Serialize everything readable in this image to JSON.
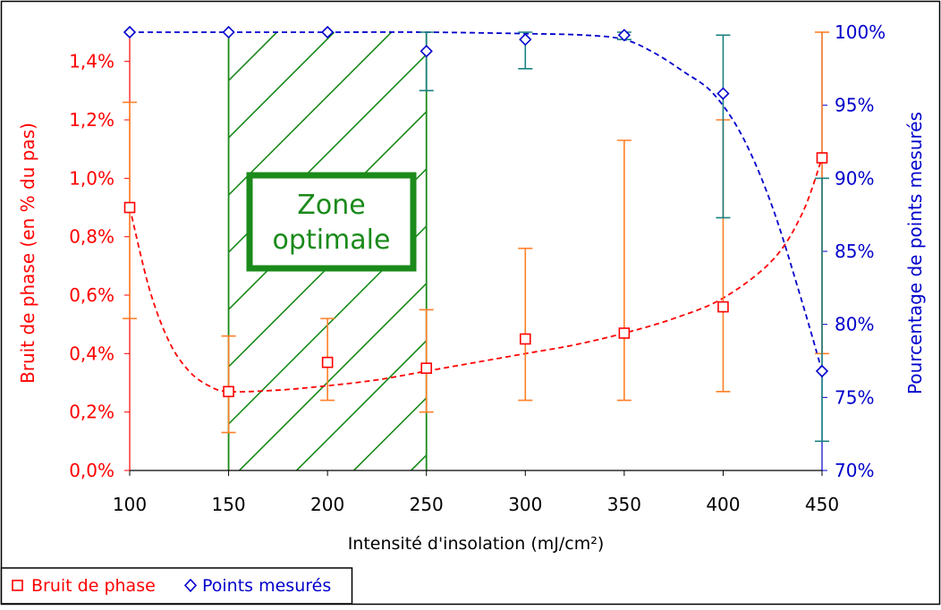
{
  "chart_data": {
    "type": "scatter",
    "xlabel": "Intensité d'insolation (mJ/cm²)",
    "ylabel": "Bruit de phase (en % du pas)",
    "y2label": "Pourcentage de points mesurés",
    "xlim": [
      100,
      450
    ],
    "ylim": [
      0.0,
      1.5
    ],
    "y2lim": [
      70,
      100
    ],
    "x_ticks": [
      "100",
      "150",
      "200",
      "250",
      "300",
      "350",
      "400",
      "450"
    ],
    "x_tick_values": [
      100,
      150,
      200,
      250,
      300,
      350,
      400,
      450
    ],
    "y_ticks": [
      "0,0%",
      "0,2%",
      "0,4%",
      "0,6%",
      "0,8%",
      "1,0%",
      "1,2%",
      "1,4%"
    ],
    "y_tick_values": [
      0.0,
      0.2,
      0.4,
      0.6,
      0.8,
      1.0,
      1.2,
      1.4
    ],
    "y2_ticks": [
      "70%",
      "75%",
      "80%",
      "85%",
      "90%",
      "95%",
      "100%"
    ],
    "y2_tick_values": [
      70,
      75,
      80,
      85,
      90,
      95,
      100
    ],
    "grid": false,
    "legend_position": "bottom-left",
    "series": [
      {
        "name": "Bruit de phase",
        "axis": "left",
        "color": "#ff0000",
        "errorbar_color": "#ff7f27",
        "marker": "square",
        "x": [
          100,
          150,
          200,
          250,
          300,
          350,
          400,
          450
        ],
        "y": [
          0.9,
          0.27,
          0.37,
          0.35,
          0.45,
          0.47,
          0.56,
          1.07
        ],
        "y_low": [
          0.52,
          0.13,
          0.24,
          0.2,
          0.24,
          0.24,
          0.27,
          0.4
        ],
        "y_high": [
          1.26,
          0.46,
          0.52,
          0.55,
          0.76,
          1.13,
          1.2,
          1.5
        ],
        "trend": [
          [
            100,
            0.9
          ],
          [
            110,
            0.62
          ],
          [
            120,
            0.44
          ],
          [
            130,
            0.34
          ],
          [
            140,
            0.29
          ],
          [
            150,
            0.27
          ],
          [
            175,
            0.275
          ],
          [
            200,
            0.29
          ],
          [
            225,
            0.31
          ],
          [
            250,
            0.34
          ],
          [
            275,
            0.37
          ],
          [
            300,
            0.4
          ],
          [
            325,
            0.43
          ],
          [
            350,
            0.47
          ],
          [
            375,
            0.52
          ],
          [
            400,
            0.59
          ],
          [
            425,
            0.72
          ],
          [
            440,
            0.88
          ],
          [
            450,
            1.07
          ]
        ]
      },
      {
        "name": "Points mesurés",
        "axis": "right",
        "color": "#0000cc",
        "errorbar_color": "#1a8080",
        "marker": "diamond",
        "x": [
          100,
          150,
          200,
          250,
          300,
          350,
          400,
          450
        ],
        "y": [
          100.0,
          100.0,
          100.0,
          98.7,
          99.5,
          99.8,
          95.8,
          76.8
        ],
        "y_low": [
          100.0,
          100.0,
          100.0,
          96.0,
          97.5,
          99.5,
          87.3,
          72.0
        ],
        "y_high": [
          100.0,
          100.0,
          100.0,
          100.0,
          100.0,
          100.0,
          99.8,
          90.0
        ],
        "trend": [
          [
            100,
            100.0
          ],
          [
            150,
            100.0
          ],
          [
            200,
            100.0
          ],
          [
            250,
            100.0
          ],
          [
            300,
            99.9
          ],
          [
            330,
            99.8
          ],
          [
            350,
            99.5
          ],
          [
            365,
            98.6
          ],
          [
            380,
            97.3
          ],
          [
            395,
            95.8
          ],
          [
            410,
            92.8
          ],
          [
            425,
            88.0
          ],
          [
            440,
            81.5
          ],
          [
            450,
            76.8
          ]
        ]
      }
    ],
    "annotations": [
      {
        "type": "hatched_band",
        "x_start": 150,
        "x_end": 250,
        "color": "#1a8a1a"
      },
      {
        "type": "box_label",
        "lines": [
          "Zone",
          "optimale"
        ],
        "color": "#1a8a1a"
      }
    ]
  },
  "legend": {
    "items": [
      {
        "label": "Bruit de phase",
        "marker": "square",
        "color": "#ff0000"
      },
      {
        "label": "Points mesurés",
        "marker": "diamond",
        "color": "#0000cc"
      }
    ]
  }
}
